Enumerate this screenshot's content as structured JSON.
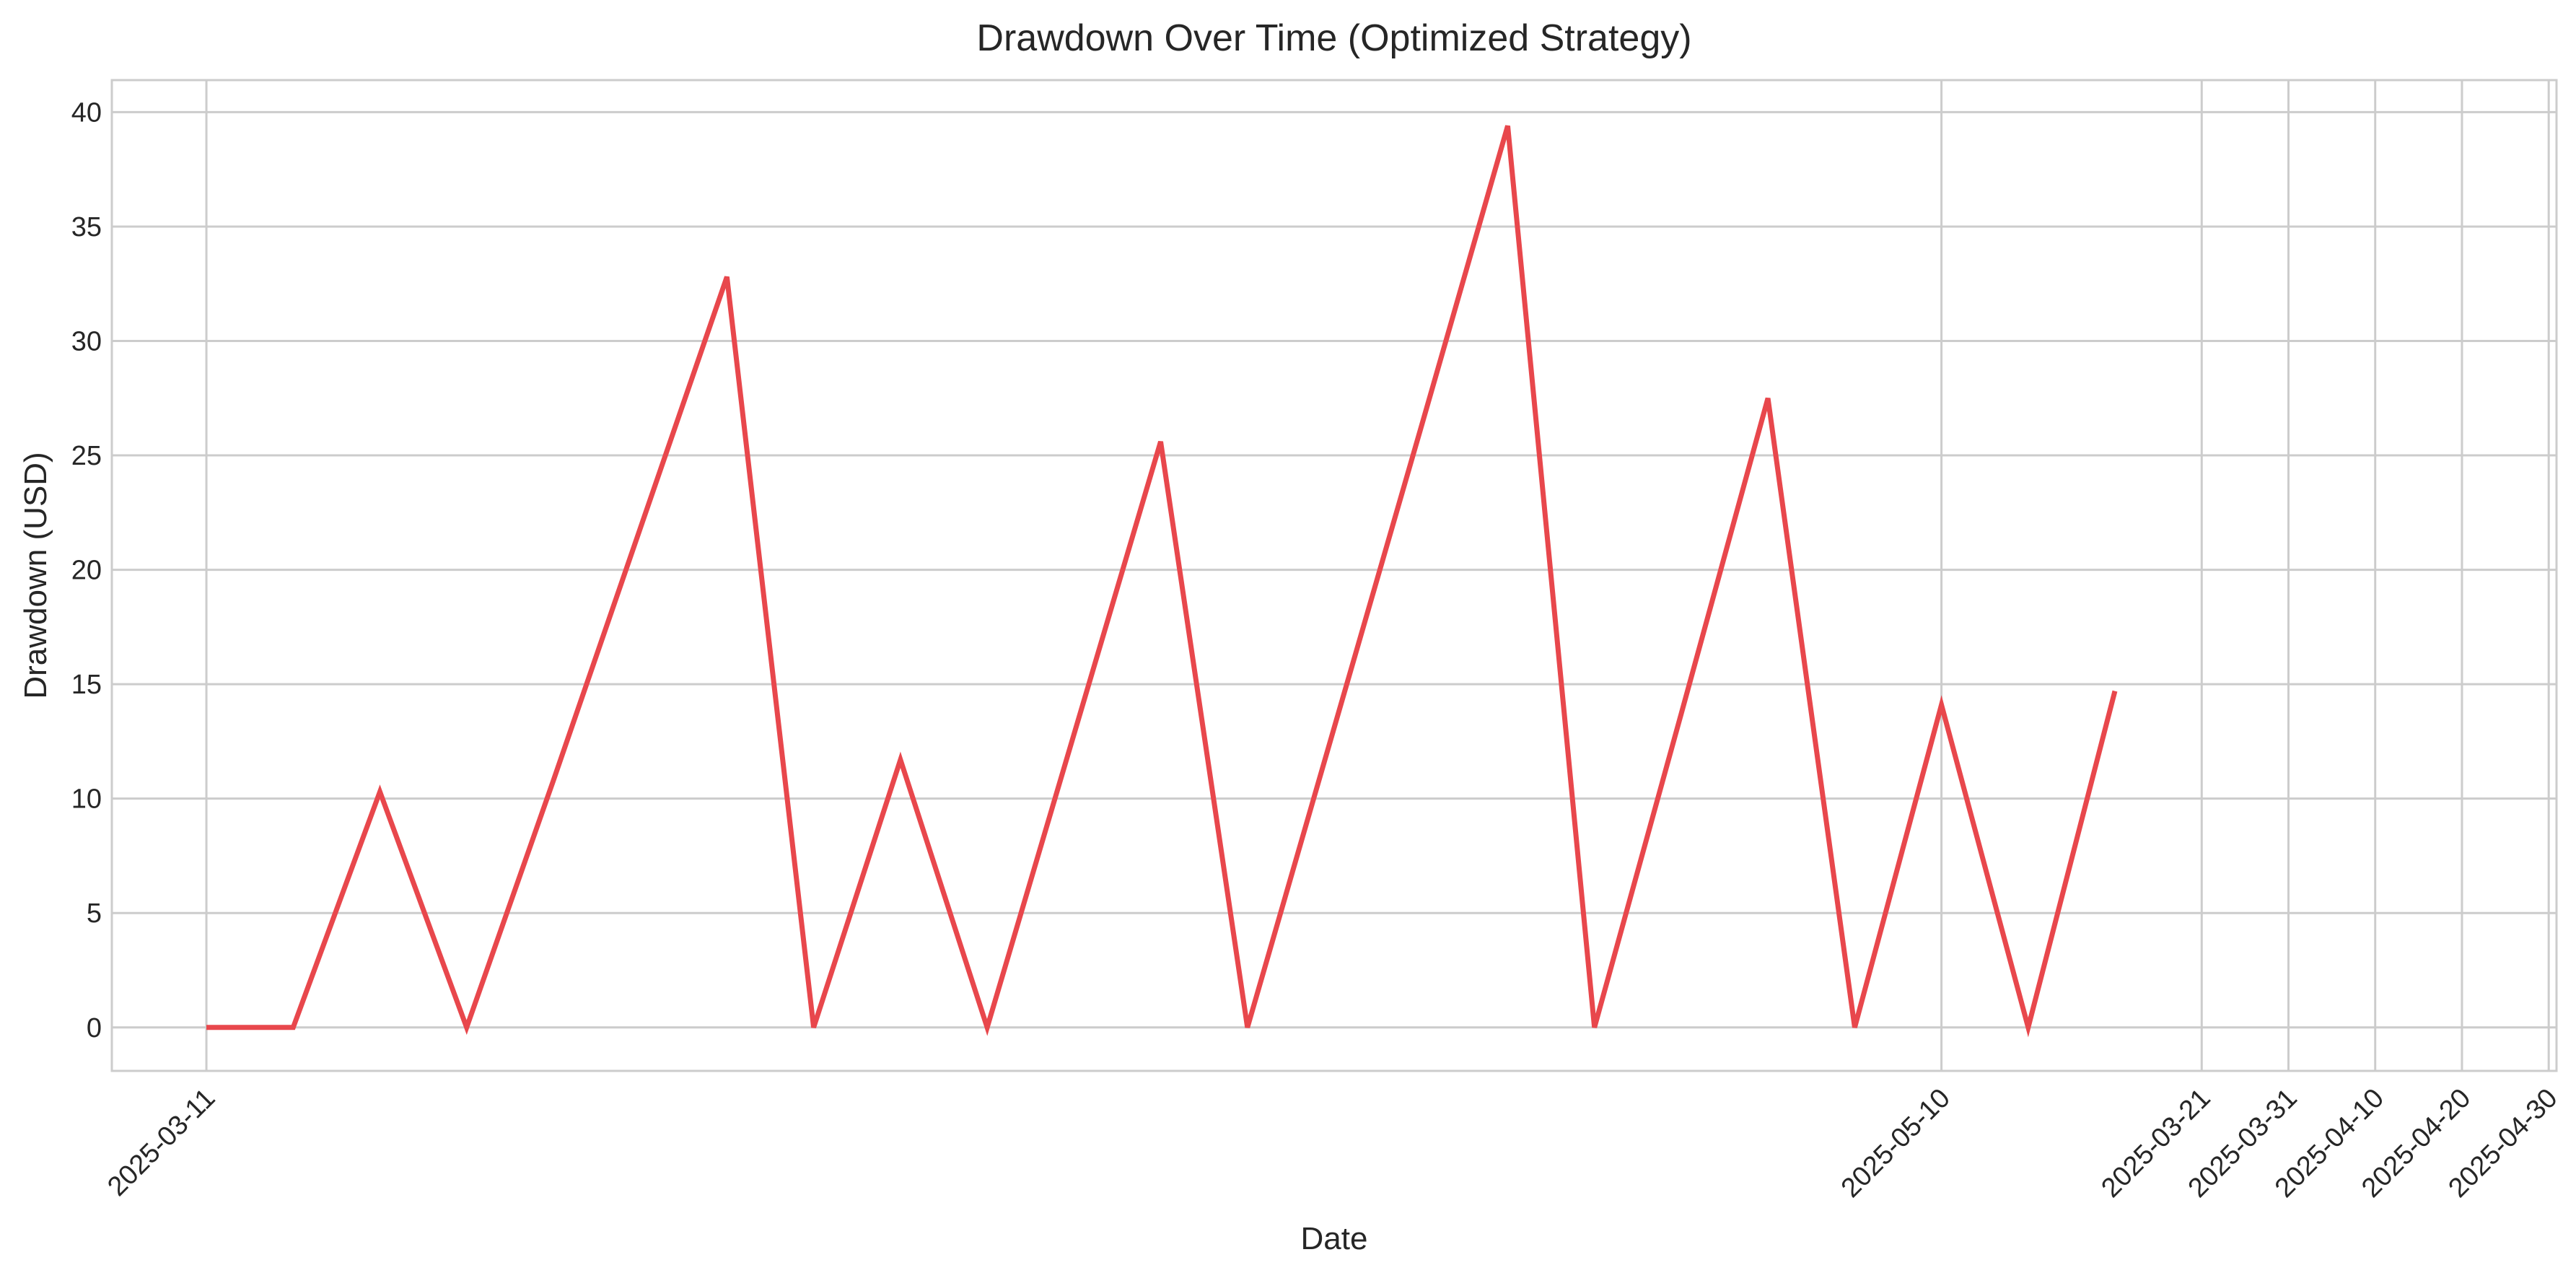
{
  "chart_data": {
    "type": "line",
    "title": "Drawdown Over Time (Optimized Strategy)",
    "xlabel": "Date",
    "ylabel": "Drawdown (USD)",
    "ylim": [
      -1.9,
      41.4
    ],
    "grid": true,
    "color": "#e8474c",
    "y_ticks": [
      0,
      5,
      10,
      15,
      20,
      25,
      30,
      35,
      40
    ],
    "x_ticks": [
      {
        "label": "2025-03-11",
        "x": 0
      },
      {
        "label": "2025-05-10",
        "x": 20
      },
      {
        "label": "2025-03-21",
        "x": 23
      },
      {
        "label": "2025-03-31",
        "x": 24
      },
      {
        "label": "2025-04-10",
        "x": 25
      },
      {
        "label": "2025-04-20",
        "x": 26
      },
      {
        "label": "2025-04-30",
        "x": 27
      }
    ],
    "xlim": [
      -1.09,
      27.09
    ],
    "series": [
      {
        "x": [
          0,
          1,
          2,
          3,
          4,
          5,
          6,
          7,
          8,
          9,
          10,
          11,
          12,
          13,
          14,
          15,
          16,
          17,
          18,
          19,
          20,
          21,
          22
        ],
        "values": [
          0,
          0,
          10.3,
          0,
          10.8,
          21.8,
          32.8,
          0,
          11.7,
          0,
          12.8,
          25.6,
          0,
          13.1,
          26.2,
          39.4,
          0,
          13.7,
          27.5,
          0,
          14.1,
          0,
          14.7
        ]
      }
    ]
  }
}
